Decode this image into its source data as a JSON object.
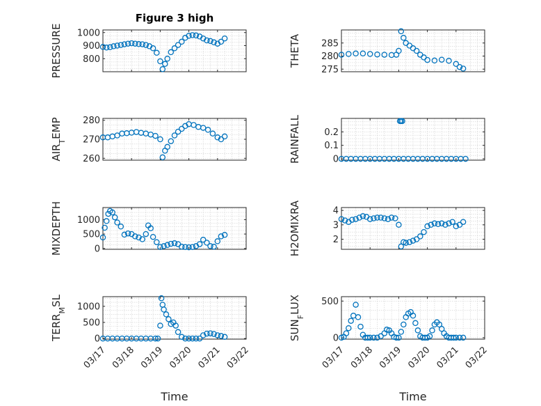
{
  "chart_data": [
    {
      "type": "scatter",
      "name": "pressure",
      "title": "Figure 3 high",
      "ylabel": "PRESSURE",
      "ylim": [
        700,
        1020
      ],
      "yticks": [
        800,
        900,
        1000
      ],
      "xlim": [
        "03/17",
        "03/22"
      ],
      "x": [
        "03/17 00:00",
        "03/17 03:00",
        "03/17 06:00",
        "03/17 09:00",
        "03/17 12:00",
        "03/17 15:00",
        "03/17 18:00",
        "03/17 21:00",
        "03/18 00:00",
        "03/18 03:00",
        "03/18 06:00",
        "03/18 09:00",
        "03/18 12:00",
        "03/18 15:00",
        "03/18 18:00",
        "03/18 21:00",
        "03/19 00:00",
        "03/19 02:00",
        "03/19 04:00",
        "03/19 06:00",
        "03/19 09:00",
        "03/19 12:00",
        "03/19 15:00",
        "03/19 18:00",
        "03/19 21:00",
        "03/20 00:00",
        "03/20 03:00",
        "03/20 06:00",
        "03/20 09:00",
        "03/20 12:00",
        "03/20 15:00",
        "03/20 18:00",
        "03/20 21:00",
        "03/21 00:00",
        "03/21 03:00",
        "03/21 06:00"
      ],
      "y": [
        890,
        885,
        888,
        895,
        900,
        905,
        910,
        915,
        918,
        915,
        912,
        910,
        905,
        895,
        880,
        845,
        780,
        720,
        760,
        800,
        850,
        880,
        905,
        930,
        960,
        975,
        980,
        978,
        970,
        955,
        940,
        935,
        925,
        915,
        930,
        955
      ]
    },
    {
      "type": "scatter",
      "name": "theta",
      "ylabel": "THETA",
      "ylim": [
        274,
        290
      ],
      "yticks": [
        275,
        280,
        285
      ],
      "xlim": [
        "03/17",
        "03/22"
      ],
      "x": [
        "03/17 00:00",
        "03/17 06:00",
        "03/17 12:00",
        "03/17 18:00",
        "03/18 00:00",
        "03/18 06:00",
        "03/18 12:00",
        "03/18 18:00",
        "03/18 22:00",
        "03/19 00:00",
        "03/19 02:00",
        "03/19 04:00",
        "03/19 06:00",
        "03/19 09:00",
        "03/19 12:00",
        "03/19 15:00",
        "03/19 18:00",
        "03/19 21:00",
        "03/20 00:00",
        "03/20 06:00",
        "03/20 12:00",
        "03/20 18:00",
        "03/21 00:00",
        "03/21 03:00",
        "03/21 06:00"
      ],
      "y": [
        280.5,
        280.8,
        281,
        281,
        280.8,
        280.6,
        280.5,
        280.4,
        280.5,
        282,
        289.5,
        287,
        285,
        284,
        283,
        282,
        280.5,
        279.5,
        278.5,
        278.3,
        278.6,
        278.2,
        277,
        275.8,
        275.2
      ]
    },
    {
      "type": "scatter",
      "name": "air-temp",
      "ylabel": "AIR_TEMP",
      "ylabel_parts": [
        "AIR",
        "T",
        "EMP"
      ],
      "ylim": [
        259,
        281
      ],
      "yticks": [
        260,
        270,
        280
      ],
      "xlim": [
        "03/17",
        "03/22"
      ],
      "x": [
        "03/17 00:00",
        "03/17 04:00",
        "03/17 08:00",
        "03/17 12:00",
        "03/17 16:00",
        "03/17 20:00",
        "03/18 00:00",
        "03/18 04:00",
        "03/18 08:00",
        "03/18 12:00",
        "03/18 16:00",
        "03/18 20:00",
        "03/19 00:00",
        "03/19 02:00",
        "03/19 04:00",
        "03/19 06:00",
        "03/19 09:00",
        "03/19 12:00",
        "03/19 15:00",
        "03/19 18:00",
        "03/19 21:00",
        "03/20 00:00",
        "03/20 04:00",
        "03/20 08:00",
        "03/20 12:00",
        "03/20 16:00",
        "03/20 20:00",
        "03/21 00:00",
        "03/21 03:00",
        "03/21 06:00"
      ],
      "y": [
        271,
        271,
        271.5,
        272,
        273,
        273.2,
        273.5,
        273.8,
        273.4,
        273,
        272.5,
        271.8,
        270,
        260.5,
        264,
        266,
        269,
        272,
        274,
        275.5,
        277,
        278,
        277.5,
        276.5,
        276,
        275,
        273,
        271,
        270,
        271.5
      ]
    },
    {
      "type": "scatter",
      "name": "rainfall",
      "ylabel": "RAINFALL",
      "ylim": [
        -0.01,
        0.3
      ],
      "yticks": [
        0,
        0.1,
        0.2
      ],
      "xlim": [
        "03/17",
        "03/22"
      ],
      "x": [
        "03/17 00:00",
        "03/17 04:00",
        "03/17 08:00",
        "03/17 12:00",
        "03/17 16:00",
        "03/17 20:00",
        "03/18 00:00",
        "03/18 04:00",
        "03/18 08:00",
        "03/18 12:00",
        "03/18 16:00",
        "03/18 20:00",
        "03/19 00:00",
        "03/19 01:00",
        "03/19 02:00",
        "03/19 03:00",
        "03/19 04:00",
        "03/19 08:00",
        "03/19 12:00",
        "03/19 16:00",
        "03/19 20:00",
        "03/20 00:00",
        "03/20 04:00",
        "03/20 08:00",
        "03/20 12:00",
        "03/20 16:00",
        "03/20 20:00",
        "03/21 00:00",
        "03/21 04:00",
        "03/21 08:00"
      ],
      "y": [
        0,
        0,
        0,
        0,
        0,
        0,
        0,
        0,
        0,
        0,
        0,
        0,
        0,
        0.28,
        0.28,
        0.28,
        0,
        0,
        0,
        0,
        0,
        0,
        0,
        0,
        0,
        0,
        0,
        0,
        0,
        0
      ]
    },
    {
      "type": "scatter",
      "name": "mixdepth",
      "ylabel": "MIXDEPTH",
      "ylim": [
        -30,
        1420
      ],
      "yticks": [
        0,
        500,
        1000
      ],
      "xlim": [
        "03/17",
        "03/22"
      ],
      "x": [
        "03/17 00:00",
        "03/17 01:30",
        "03/17 03:00",
        "03/17 04:30",
        "03/17 06:00",
        "03/17 08:00",
        "03/17 10:00",
        "03/17 12:00",
        "03/17 15:00",
        "03/17 18:00",
        "03/17 21:00",
        "03/18 00:00",
        "03/18 03:00",
        "03/18 06:00",
        "03/18 09:00",
        "03/18 12:00",
        "03/18 14:00",
        "03/18 16:00",
        "03/18 18:00",
        "03/18 21:00",
        "03/19 00:00",
        "03/19 03:00",
        "03/19 06:00",
        "03/19 09:00",
        "03/19 12:00",
        "03/19 15:00",
        "03/19 18:00",
        "03/19 21:00",
        "03/20 00:00",
        "03/20 03:00",
        "03/20 06:00",
        "03/20 09:00",
        "03/20 12:00",
        "03/20 15:00",
        "03/20 18:00",
        "03/20 21:00",
        "03/21 00:00",
        "03/21 03:00",
        "03/21 06:00"
      ],
      "y": [
        380,
        720,
        950,
        1200,
        1300,
        1250,
        1080,
        900,
        760,
        480,
        520,
        500,
        420,
        380,
        320,
        500,
        800,
        700,
        400,
        220,
        50,
        80,
        120,
        160,
        180,
        150,
        60,
        50,
        40,
        50,
        80,
        150,
        300,
        200,
        80,
        60,
        250,
        420,
        470
      ]
    },
    {
      "type": "scatter",
      "name": "h2omixra",
      "ylabel": "H2OMIXRA",
      "ylim": [
        1.3,
        4.2
      ],
      "yticks": [
        2,
        3,
        4
      ],
      "xlim": [
        "03/17",
        "03/22"
      ],
      "x": [
        "03/17 00:00",
        "03/17 03:00",
        "03/17 06:00",
        "03/17 09:00",
        "03/17 12:00",
        "03/17 15:00",
        "03/17 18:00",
        "03/17 21:00",
        "03/18 00:00",
        "03/18 03:00",
        "03/18 06:00",
        "03/18 09:00",
        "03/18 12:00",
        "03/18 15:00",
        "03/18 18:00",
        "03/18 21:00",
        "03/19 00:00",
        "03/19 02:00",
        "03/19 04:00",
        "03/19 06:00",
        "03/19 09:00",
        "03/19 12:00",
        "03/19 15:00",
        "03/19 18:00",
        "03/19 21:00",
        "03/20 00:00",
        "03/20 03:00",
        "03/20 06:00",
        "03/20 09:00",
        "03/20 12:00",
        "03/20 15:00",
        "03/20 18:00",
        "03/20 21:00",
        "03/21 00:00",
        "03/21 03:00",
        "03/21 06:00"
      ],
      "y": [
        3.4,
        3.3,
        3.2,
        3.35,
        3.4,
        3.5,
        3.6,
        3.55,
        3.4,
        3.45,
        3.5,
        3.5,
        3.45,
        3.4,
        3.5,
        3.45,
        3.0,
        1.5,
        1.8,
        1.75,
        1.8,
        1.9,
        2.0,
        2.2,
        2.5,
        2.9,
        3.0,
        3.1,
        3.05,
        3.1,
        3.0,
        3.1,
        3.2,
        2.9,
        3.0,
        3.2
      ]
    },
    {
      "type": "scatter",
      "name": "terr-msl",
      "ylabel": "TERR_MSL",
      "ylabel_parts": [
        "TERR",
        "M",
        "SL"
      ],
      "ylim": [
        -20,
        1300
      ],
      "yticks": [
        0,
        500,
        1000
      ],
      "xlim": [
        "03/17",
        "03/22"
      ],
      "x": [
        "03/17 00:00",
        "03/17 04:00",
        "03/17 08:00",
        "03/17 12:00",
        "03/17 16:00",
        "03/17 20:00",
        "03/18 00:00",
        "03/18 04:00",
        "03/18 08:00",
        "03/18 12:00",
        "03/18 16:00",
        "03/18 20:00",
        "03/18 22:00",
        "03/19 00:00",
        "03/19 01:00",
        "03/19 02:00",
        "03/19 03:00",
        "03/19 05:00",
        "03/19 07:00",
        "03/19 09:00",
        "03/19 11:00",
        "03/19 13:00",
        "03/19 15:00",
        "03/19 18:00",
        "03/19 21:00",
        "03/20 00:00",
        "03/20 03:00",
        "03/20 06:00",
        "03/20 09:00",
        "03/20 12:00",
        "03/20 15:00",
        "03/20 18:00",
        "03/20 21:00",
        "03/21 00:00",
        "03/21 03:00",
        "03/21 06:00"
      ],
      "y": [
        0,
        0,
        0,
        0,
        0,
        0,
        0,
        0,
        0,
        0,
        0,
        0,
        0,
        400,
        1250,
        1050,
        900,
        750,
        600,
        450,
        500,
        400,
        200,
        50,
        0,
        0,
        0,
        0,
        0,
        100,
        150,
        160,
        140,
        100,
        80,
        50
      ]
    },
    {
      "type": "scatter",
      "name": "sun-flux",
      "ylabel": "SUN_FLUX",
      "ylabel_parts": [
        "SUN",
        "F",
        "LUX"
      ],
      "ylim": [
        -20,
        560
      ],
      "yticks": [
        0,
        500
      ],
      "xlim": [
        "03/17",
        "03/22"
      ],
      "x": [
        "03/17 00:00",
        "03/17 02:00",
        "03/17 04:00",
        "03/17 06:00",
        "03/17 08:00",
        "03/17 10:00",
        "03/17 12:00",
        "03/17 14:00",
        "03/17 16:00",
        "03/17 18:00",
        "03/17 20:00",
        "03/17 22:00",
        "03/18 00:00",
        "03/18 03:00",
        "03/18 06:00",
        "03/18 09:00",
        "03/18 12:00",
        "03/18 14:00",
        "03/18 16:00",
        "03/18 18:00",
        "03/18 20:00",
        "03/18 22:00",
        "03/19 00:00",
        "03/19 02:00",
        "03/19 04:00",
        "03/19 06:00",
        "03/19 08:00",
        "03/19 10:00",
        "03/19 12:00",
        "03/19 14:00",
        "03/19 16:00",
        "03/19 18:00",
        "03/19 20:00",
        "03/19 22:00",
        "03/20 00:00",
        "03/20 02:00",
        "03/20 04:00",
        "03/20 06:00",
        "03/20 08:00",
        "03/20 10:00",
        "03/20 12:00",
        "03/20 14:00",
        "03/20 16:00",
        "03/20 18:00",
        "03/20 20:00",
        "03/20 22:00",
        "03/21 00:00",
        "03/21 03:00",
        "03/21 06:00"
      ],
      "y": [
        0,
        10,
        60,
        130,
        230,
        300,
        450,
        280,
        150,
        40,
        0,
        0,
        0,
        0,
        0,
        20,
        60,
        110,
        100,
        60,
        10,
        0,
        0,
        80,
        180,
        280,
        330,
        350,
        300,
        200,
        100,
        20,
        0,
        0,
        0,
        20,
        100,
        180,
        210,
        180,
        120,
        60,
        20,
        0,
        0,
        0,
        0,
        0,
        0
      ]
    }
  ],
  "x_axis": {
    "ticks": [
      "03/17",
      "03/18",
      "03/19",
      "03/20",
      "03/21",
      "03/22"
    ],
    "label": "Time"
  },
  "colors": {
    "marker": "#0072bd",
    "axis": "#262626",
    "grid": "#cfcfcf"
  },
  "grid": true
}
